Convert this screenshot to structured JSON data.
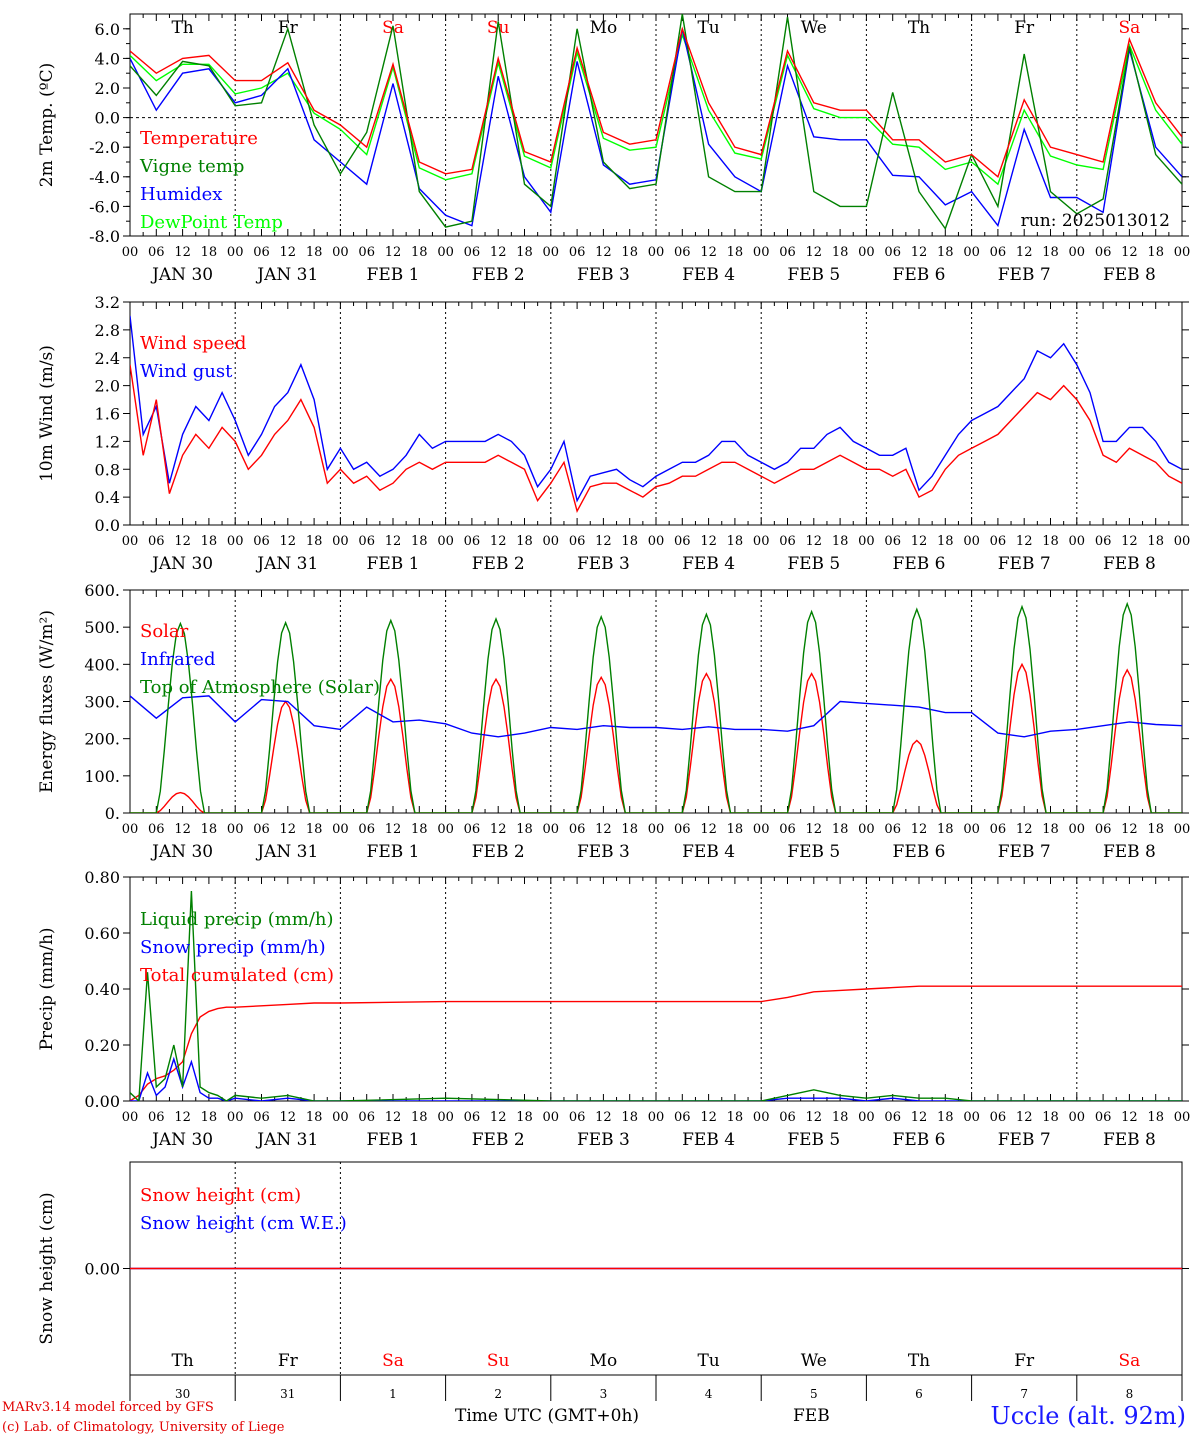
{
  "days": {
    "weekdays": [
      "Th",
      "Fr",
      "Sa",
      "Su",
      "Mo",
      "Tu",
      "We",
      "Th",
      "Fr",
      "Sa"
    ],
    "weekend": [
      false,
      false,
      true,
      true,
      false,
      false,
      false,
      false,
      false,
      true
    ],
    "dates": [
      "JAN 30",
      "JAN 31",
      "FEB  1",
      "FEB  2",
      "FEB  3",
      "FEB  4",
      "FEB  5",
      "FEB  6",
      "FEB  7",
      "FEB  8"
    ],
    "daynums": [
      "30",
      "31",
      "1",
      "2",
      "3",
      "4",
      "5",
      "6",
      "7",
      "8"
    ],
    "hour_labels": [
      "00",
      "06",
      "12",
      "18"
    ],
    "end_label": "00"
  },
  "colors": {
    "red": "#ff0000",
    "green": "#008000",
    "blue": "#0000ff",
    "lime": "#00ff00",
    "weekend": "#ff0000",
    "axis": "#000000"
  },
  "footer": {
    "model": "MARv3.14 model forced by GFS",
    "lab": "(c) Lab. of Climatology, University of Liege",
    "time_label": "Time UTC (GMT+0h)",
    "month": "FEB",
    "station": "Uccle (alt. 92m)"
  },
  "chart_data": [
    {
      "id": "temp",
      "type": "line",
      "ylabel": "2m Temp. (ºC)",
      "ylim": [
        -8,
        7
      ],
      "yticks": [
        6,
        4,
        2,
        0,
        -2,
        -4,
        -6,
        -8
      ],
      "ytick_labels": [
        "6.0",
        "4.0",
        "2.0",
        "0.0",
        "-2.0",
        "-4.0",
        "-6.0",
        "-8.0"
      ],
      "zero_line": true,
      "show_weekdays": true,
      "annotation": "run: 2025013012",
      "legend_placement": "top-left",
      "x_hours": [
        0,
        6,
        12,
        18,
        24,
        30,
        36,
        42,
        48,
        54,
        60,
        66,
        72,
        78,
        84,
        90,
        96,
        102,
        108,
        114,
        120,
        126,
        132,
        138,
        144,
        150,
        156,
        162,
        168,
        174,
        180,
        186,
        192,
        198,
        204,
        210,
        216,
        222,
        228,
        234,
        240
      ],
      "series": [
        {
          "name": "Temperature",
          "color": "#ff0000",
          "values": [
            4.5,
            3.0,
            4.0,
            4.2,
            2.5,
            2.5,
            3.7,
            0.5,
            -0.5,
            -2.0,
            3.6,
            -3.0,
            -3.8,
            -3.5,
            4.0,
            -2.3,
            -3.0,
            4.7,
            -1.0,
            -1.8,
            -1.5,
            6.0,
            1.0,
            -2.0,
            -2.5,
            4.5,
            1.0,
            0.5,
            0.5,
            -1.5,
            -1.5,
            -3.0,
            -2.5,
            -4.0,
            1.2,
            -2.0,
            -2.5,
            -3.0,
            5.3,
            1.0,
            -1.3
          ]
        },
        {
          "name": "Vigne temp",
          "color": "#008000",
          "values": [
            3.5,
            1.5,
            3.8,
            3.5,
            0.8,
            1.0,
            6.0,
            -0.5,
            -3.8,
            -1.0,
            6.2,
            -5.0,
            -7.4,
            -7.0,
            6.5,
            -4.5,
            -6.0,
            6.0,
            -3.0,
            -4.8,
            -4.5,
            7.0,
            -4.0,
            -5.0,
            -5.0,
            6.8,
            -5.0,
            -6.0,
            -6.0,
            1.7,
            -5.0,
            -7.5,
            -2.5,
            -6.0,
            4.3,
            -5.0,
            -6.5,
            -5.5,
            4.8,
            -2.5,
            -4.5
          ]
        },
        {
          "name": "Humidex",
          "color": "#0000ff",
          "values": [
            4.0,
            0.5,
            3.0,
            3.3,
            1.0,
            1.5,
            3.3,
            -1.5,
            -3.0,
            -4.5,
            2.3,
            -4.8,
            -6.6,
            -7.3,
            2.8,
            -4.0,
            -6.4,
            3.8,
            -3.2,
            -4.5,
            -4.2,
            6.0,
            -1.8,
            -4.0,
            -5.0,
            3.5,
            -1.3,
            -1.5,
            -1.5,
            -3.9,
            -4.0,
            -5.9,
            -5.0,
            -7.3,
            -0.8,
            -5.4,
            -5.4,
            -6.4,
            4.6,
            -2.0,
            -4.0
          ]
        },
        {
          "name": "DewPoint Temp",
          "color": "#00ff00",
          "values": [
            4.2,
            2.5,
            3.6,
            3.6,
            1.6,
            2.0,
            3.0,
            0.3,
            -0.8,
            -2.5,
            3.4,
            -3.4,
            -4.2,
            -3.8,
            3.7,
            -2.6,
            -3.4,
            4.4,
            -1.4,
            -2.2,
            -2.0,
            5.6,
            0.5,
            -2.4,
            -2.8,
            4.2,
            0.6,
            0.0,
            0.0,
            -1.8,
            -2.0,
            -3.5,
            -3.0,
            -4.5,
            0.5,
            -2.6,
            -3.2,
            -3.5,
            4.9,
            0.5,
            -1.8
          ]
        }
      ]
    },
    {
      "id": "wind",
      "type": "line",
      "ylabel": "10m Wind (m/s)",
      "ylim": [
        0,
        3.2
      ],
      "yticks": [
        3.2,
        2.8,
        2.4,
        2.0,
        1.6,
        1.2,
        0.8,
        0.4,
        0.0
      ],
      "ytick_labels": [
        "3.2",
        "2.8",
        "2.4",
        "2.0",
        "1.6",
        "1.2",
        "0.8",
        "0.4",
        "0.0"
      ],
      "legend_placement": "top-left",
      "x_hours": [
        0,
        3,
        6,
        9,
        12,
        15,
        18,
        21,
        24,
        27,
        30,
        33,
        36,
        39,
        42,
        45,
        48,
        51,
        54,
        57,
        60,
        63,
        66,
        69,
        72,
        75,
        78,
        81,
        84,
        87,
        90,
        93,
        96,
        99,
        102,
        105,
        108,
        111,
        114,
        117,
        120,
        123,
        126,
        129,
        132,
        135,
        138,
        141,
        144,
        147,
        150,
        153,
        156,
        159,
        162,
        165,
        168,
        171,
        174,
        177,
        180,
        183,
        186,
        189,
        192,
        195,
        198,
        201,
        204,
        207,
        210,
        213,
        216,
        219,
        222,
        225,
        228,
        231,
        234,
        237,
        240
      ],
      "series": [
        {
          "name": "Wind speed",
          "color": "#ff0000",
          "values": [
            2.3,
            1.0,
            1.8,
            0.45,
            1.0,
            1.3,
            1.1,
            1.4,
            1.2,
            0.8,
            1.0,
            1.3,
            1.5,
            1.8,
            1.4,
            0.6,
            0.8,
            0.6,
            0.7,
            0.5,
            0.6,
            0.8,
            0.9,
            0.8,
            0.9,
            0.9,
            0.9,
            0.9,
            1.0,
            0.9,
            0.8,
            0.35,
            0.6,
            0.9,
            0.2,
            0.55,
            0.6,
            0.6,
            0.5,
            0.4,
            0.55,
            0.6,
            0.7,
            0.7,
            0.8,
            0.9,
            0.9,
            0.8,
            0.7,
            0.6,
            0.7,
            0.8,
            0.8,
            0.9,
            1.0,
            0.9,
            0.8,
            0.8,
            0.7,
            0.8,
            0.4,
            0.5,
            0.8,
            1.0,
            1.1,
            1.2,
            1.3,
            1.5,
            1.7,
            1.9,
            1.8,
            2.0,
            1.8,
            1.5,
            1.0,
            0.9,
            1.1,
            1.0,
            0.9,
            0.7,
            0.6
          ]
        },
        {
          "name": "Wind gust",
          "color": "#0000ff",
          "values": [
            3.0,
            1.3,
            1.7,
            0.6,
            1.3,
            1.7,
            1.5,
            1.9,
            1.5,
            1.0,
            1.3,
            1.7,
            1.9,
            2.3,
            1.8,
            0.8,
            1.1,
            0.8,
            0.9,
            0.7,
            0.8,
            1.0,
            1.3,
            1.1,
            1.2,
            1.2,
            1.2,
            1.2,
            1.3,
            1.2,
            1.0,
            0.55,
            0.8,
            1.2,
            0.35,
            0.7,
            0.75,
            0.8,
            0.65,
            0.55,
            0.7,
            0.8,
            0.9,
            0.9,
            1.0,
            1.2,
            1.2,
            1.0,
            0.9,
            0.8,
            0.9,
            1.1,
            1.1,
            1.3,
            1.4,
            1.2,
            1.1,
            1.0,
            1.0,
            1.1,
            0.5,
            0.7,
            1.0,
            1.3,
            1.5,
            1.6,
            1.7,
            1.9,
            2.1,
            2.5,
            2.4,
            2.6,
            2.3,
            1.9,
            1.2,
            1.2,
            1.4,
            1.4,
            1.2,
            0.9,
            0.8
          ]
        }
      ]
    },
    {
      "id": "flux",
      "type": "line",
      "ylabel": "Energy fluxes (W/m²)",
      "ylim": [
        0,
        600
      ],
      "yticks": [
        600,
        500,
        400,
        300,
        200,
        100,
        0
      ],
      "ytick_labels": [
        "600.",
        "500.",
        "400.",
        "300.",
        "200.",
        "100.",
        "0."
      ],
      "legend_placement": "top-left",
      "daylight": {
        "sunrise_hours": [
          6,
          30,
          54,
          78,
          102,
          126,
          150,
          174,
          198,
          222
        ],
        "sunset_hours": [
          17,
          41,
          65,
          89,
          113,
          137,
          161,
          185,
          209,
          233
        ],
        "solar_peak": [
          55,
          300,
          360,
          360,
          365,
          375,
          375,
          195,
          400,
          385
        ],
        "toa_peak": [
          510,
          512,
          518,
          522,
          528,
          535,
          542,
          548,
          555,
          563
        ]
      },
      "series": [
        {
          "name": "Solar",
          "color": "#ff0000"
        },
        {
          "name": "Infrared",
          "color": "#0000ff",
          "x_hours": [
            0,
            6,
            12,
            18,
            24,
            30,
            36,
            42,
            48,
            54,
            60,
            66,
            72,
            78,
            84,
            90,
            96,
            102,
            108,
            114,
            120,
            126,
            132,
            138,
            144,
            150,
            156,
            162,
            168,
            174,
            180,
            186,
            192,
            198,
            204,
            210,
            216,
            222,
            228,
            234,
            240
          ],
          "values": [
            315,
            255,
            310,
            315,
            245,
            305,
            300,
            235,
            225,
            285,
            245,
            250,
            240,
            215,
            205,
            215,
            230,
            225,
            235,
            230,
            230,
            225,
            232,
            225,
            225,
            220,
            235,
            300,
            295,
            290,
            285,
            270,
            270,
            215,
            205,
            220,
            225,
            235,
            245,
            238,
            235
          ]
        },
        {
          "name": "Top of Atmosphere (Solar)",
          "color": "#008000"
        }
      ]
    },
    {
      "id": "precip",
      "type": "line",
      "ylabel": "Precip (mm/h)",
      "ylim": [
        0,
        0.8
      ],
      "yticks": [
        0.8,
        0.6,
        0.4,
        0.2,
        0.0
      ],
      "ytick_labels": [
        "0.80",
        "0.60",
        "0.40",
        "0.20",
        "0.00"
      ],
      "legend_placement": "top-left",
      "x_hours": [
        0,
        2,
        4,
        6,
        8,
        10,
        12,
        14,
        16,
        18,
        20,
        22,
        24,
        30,
        36,
        42,
        48,
        72,
        96,
        120,
        144,
        150,
        156,
        162,
        168,
        174,
        180,
        186,
        192,
        216,
        240
      ],
      "series": [
        {
          "name": "Liquid precip (mm/h)",
          "color": "#008000",
          "values": [
            0.03,
            0.0,
            0.46,
            0.05,
            0.08,
            0.2,
            0.05,
            0.75,
            0.05,
            0.03,
            0.02,
            0.0,
            0.02,
            0.01,
            0.02,
            0.0,
            0.0,
            0.01,
            0.0,
            0.0,
            0.0,
            0.02,
            0.04,
            0.02,
            0.01,
            0.02,
            0.01,
            0.01,
            0.0,
            0.0,
            0.0
          ]
        },
        {
          "name": "Snow precip (mm/h)",
          "color": "#0000ff",
          "values": [
            0.0,
            0.0,
            0.1,
            0.02,
            0.05,
            0.15,
            0.05,
            0.14,
            0.03,
            0.01,
            0.01,
            0.0,
            0.01,
            0.0,
            0.01,
            0.0,
            0.0,
            0.0,
            0.0,
            0.0,
            0.0,
            0.01,
            0.01,
            0.01,
            0.0,
            0.01,
            0.0,
            0.0,
            0.0,
            0.0,
            0.0
          ]
        },
        {
          "name": "Total cumulated (cm)",
          "color": "#ff0000",
          "values": [
            0.0,
            0.02,
            0.06,
            0.08,
            0.09,
            0.11,
            0.14,
            0.24,
            0.3,
            0.32,
            0.33,
            0.335,
            0.335,
            0.34,
            0.345,
            0.35,
            0.35,
            0.355,
            0.355,
            0.355,
            0.355,
            0.37,
            0.39,
            0.395,
            0.4,
            0.405,
            0.41,
            0.41,
            0.41,
            0.41,
            0.41
          ]
        }
      ]
    },
    {
      "id": "snow",
      "type": "line",
      "ylabel": "Snow height (cm)",
      "ylim": [
        -1,
        1
      ],
      "yticks": [
        0
      ],
      "ytick_labels": [
        "0.00"
      ],
      "legend_placement": "top-left",
      "show_bottom_weekdays": true,
      "x_hours": [
        0,
        240
      ],
      "series": [
        {
          "name": "Snow height (cm)",
          "color": "#ff0000",
          "values": [
            0,
            0
          ]
        },
        {
          "name": "Snow height (cm W.E.)",
          "color": "#0000ff",
          "values": [
            0,
            0
          ]
        }
      ]
    }
  ]
}
